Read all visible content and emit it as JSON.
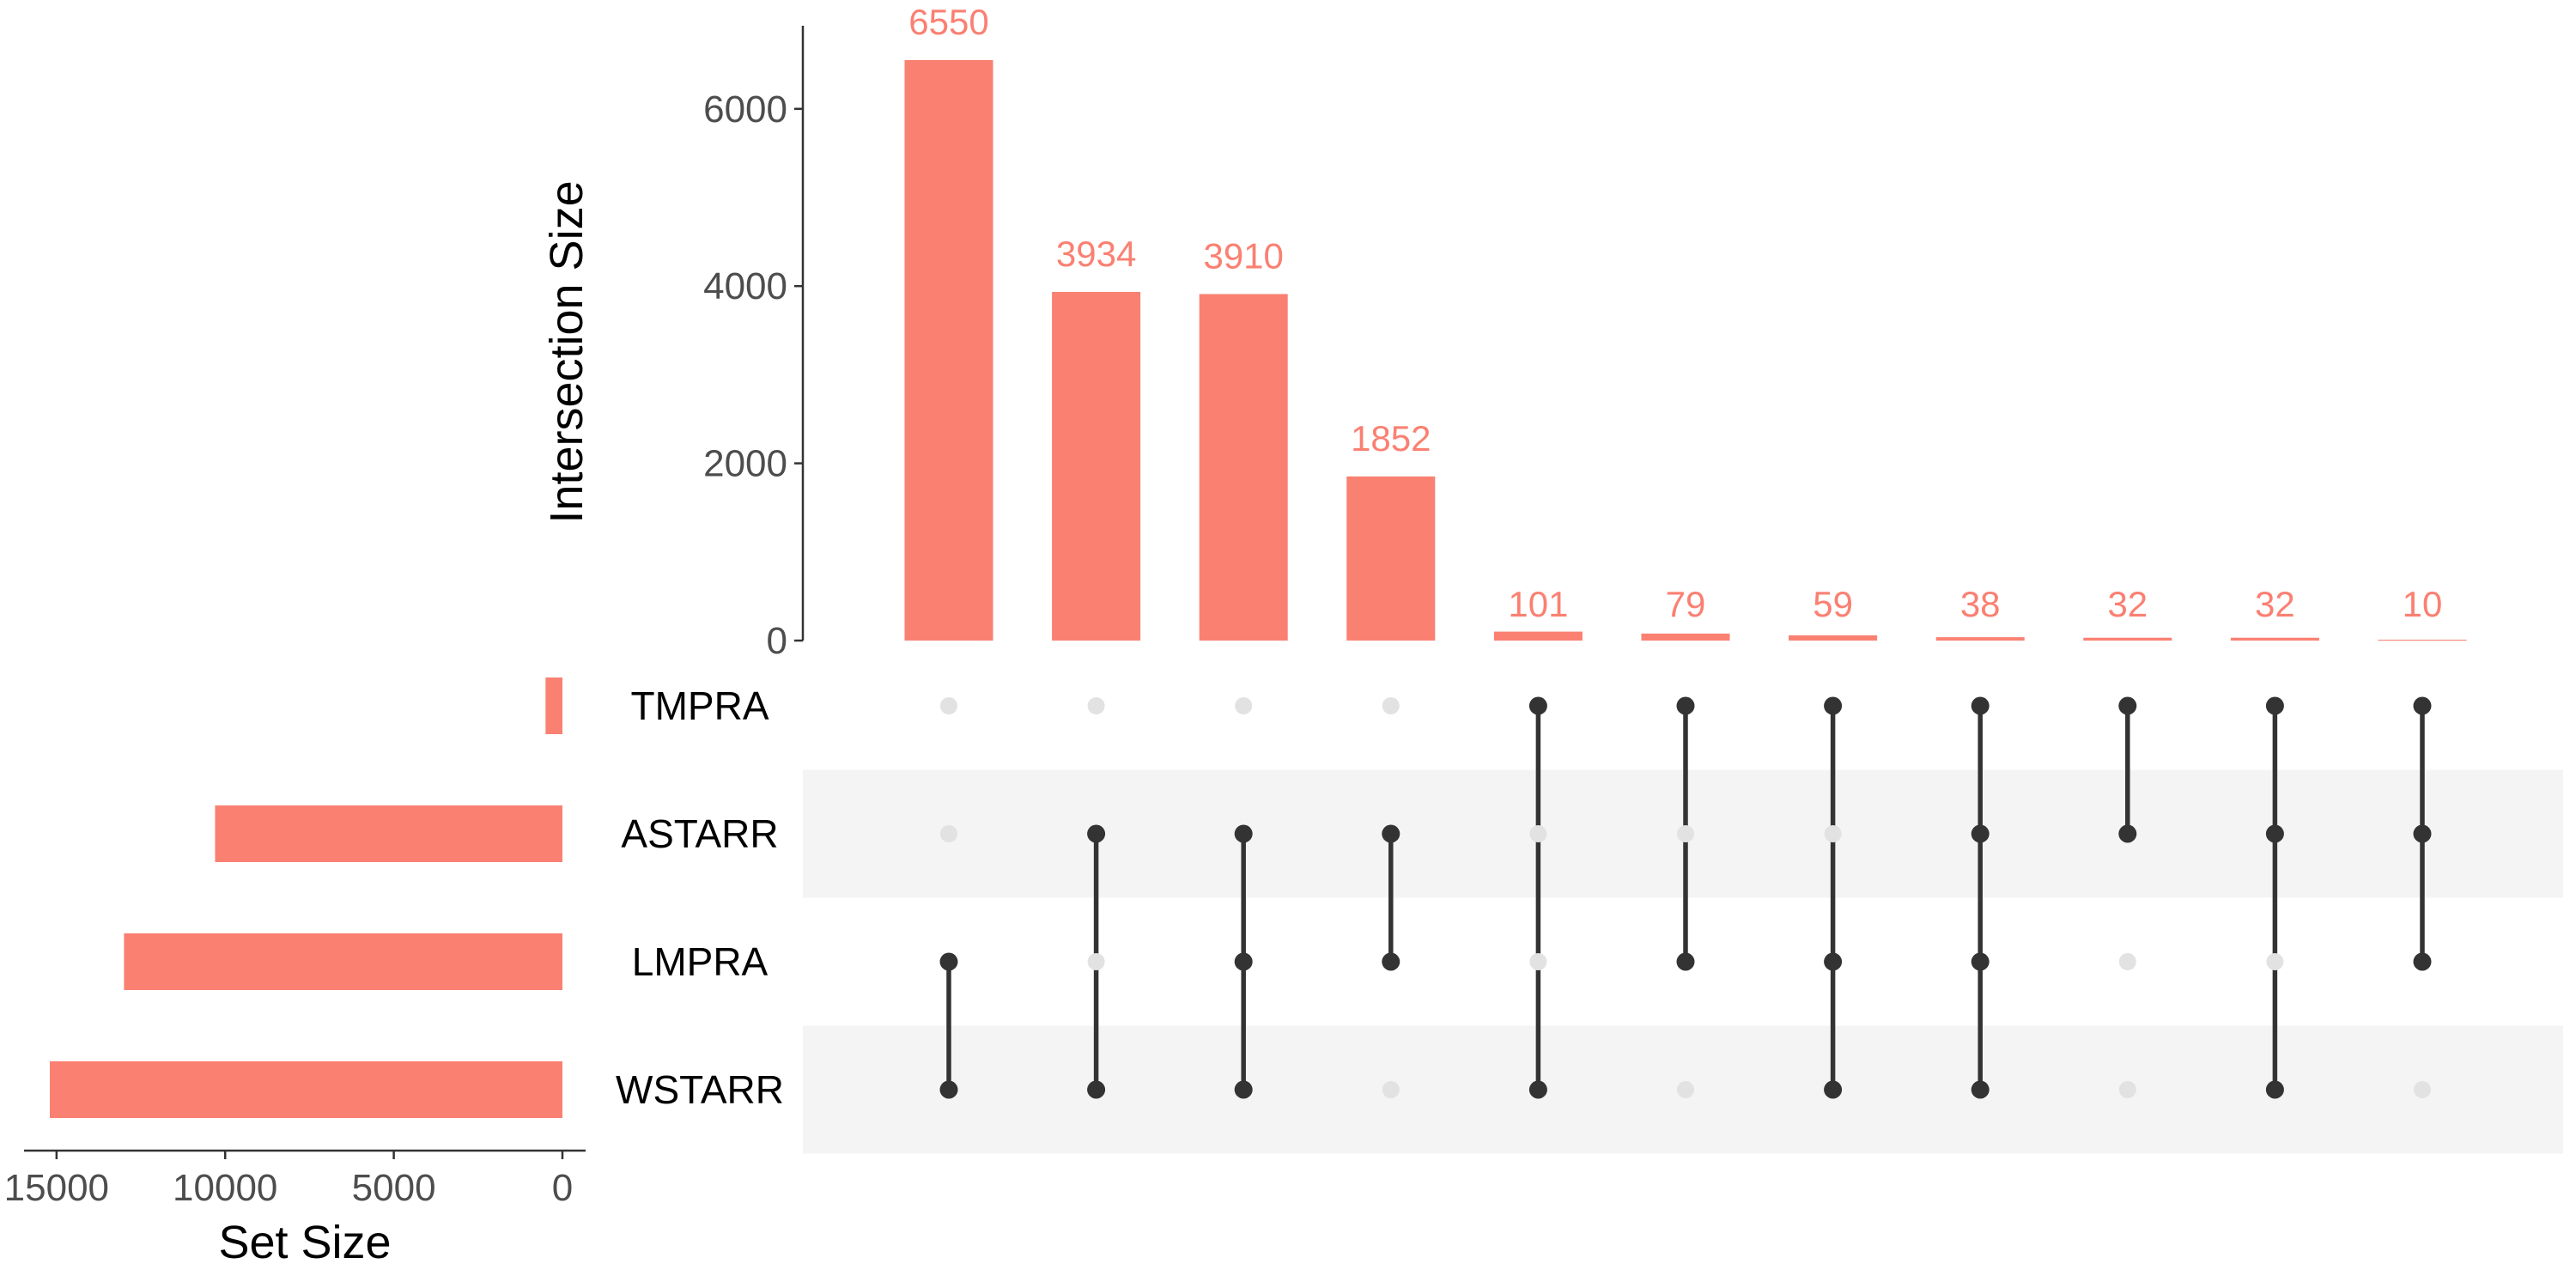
{
  "colors": {
    "bar": "#fa8072",
    "dot_active": "#333333",
    "dot_inactive": "#e2e2e2",
    "stripe": "#f4f4f4",
    "axis": "#333333",
    "tick_text": "#4d4d4d"
  },
  "chart_data": {
    "type": "bar",
    "chart_kind": "upset",
    "intersection_axis": {
      "title": "Intersection Size",
      "ylim": [
        0,
        7400
      ],
      "ticks": [
        0,
        2000,
        4000,
        6000
      ],
      "tick_labels": [
        "0",
        "2000",
        "4000",
        "6000"
      ]
    },
    "set_size_axis": {
      "title": "Set Size",
      "xlim": [
        15000,
        0
      ],
      "direction": "reversed",
      "ticks": [
        15000,
        10000,
        5000,
        0
      ],
      "tick_labels": [
        "15000",
        "10000",
        "5000",
        "0"
      ]
    },
    "sets": [
      {
        "name": "TMPRA",
        "size": 500
      },
      {
        "name": "ASTARR",
        "size": 10300
      },
      {
        "name": "LMPRA",
        "size": 13000
      },
      {
        "name": "WSTARR",
        "size": 15200
      }
    ],
    "intersections": [
      {
        "value": 6550,
        "label": "6550",
        "members": [
          "LMPRA",
          "WSTARR"
        ]
      },
      {
        "value": 3934,
        "label": "3934",
        "members": [
          "ASTARR",
          "WSTARR"
        ]
      },
      {
        "value": 3910,
        "label": "3910",
        "members": [
          "ASTARR",
          "LMPRA",
          "WSTARR"
        ]
      },
      {
        "value": 1852,
        "label": "1852",
        "members": [
          "ASTARR",
          "LMPRA"
        ]
      },
      {
        "value": 101,
        "label": "101",
        "members": [
          "TMPRA",
          "WSTARR"
        ]
      },
      {
        "value": 79,
        "label": "79",
        "members": [
          "TMPRA",
          "LMPRA"
        ]
      },
      {
        "value": 59,
        "label": "59",
        "members": [
          "TMPRA",
          "LMPRA",
          "WSTARR"
        ]
      },
      {
        "value": 38,
        "label": "38",
        "members": [
          "TMPRA",
          "ASTARR",
          "LMPRA",
          "WSTARR"
        ]
      },
      {
        "value": 32,
        "label": "32",
        "members": [
          "TMPRA",
          "ASTARR"
        ]
      },
      {
        "value": 32,
        "label": "32",
        "members": [
          "TMPRA",
          "ASTARR",
          "WSTARR"
        ]
      },
      {
        "value": 10,
        "label": "10",
        "members": [
          "TMPRA",
          "ASTARR",
          "LMPRA"
        ]
      }
    ],
    "grid": false
  }
}
